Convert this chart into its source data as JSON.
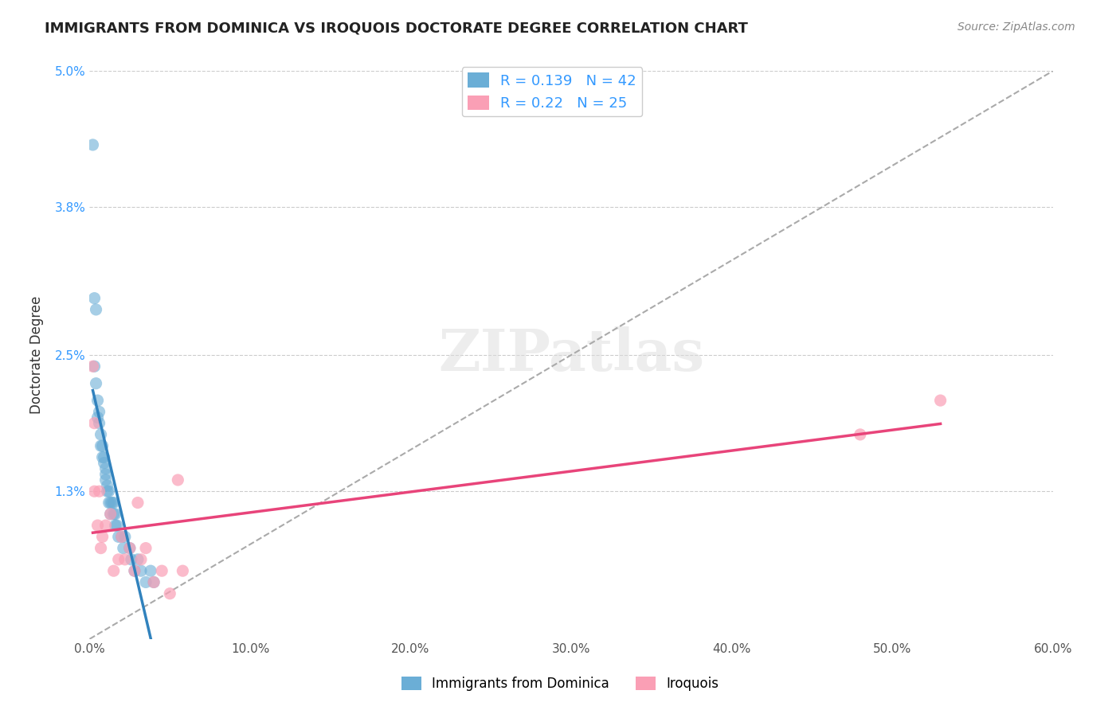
{
  "title": "IMMIGRANTS FROM DOMINICA VS IROQUOIS DOCTORATE DEGREE CORRELATION CHART",
  "source_text": "Source: ZipAtlas.com",
  "xlabel": "",
  "ylabel": "Doctorate Degree",
  "legend_label1": "Immigrants from Dominica",
  "legend_label2": "Iroquois",
  "R1": 0.139,
  "N1": 42,
  "R2": 0.22,
  "N2": 25,
  "xlim": [
    0.0,
    0.6
  ],
  "ylim": [
    0.0,
    0.05
  ],
  "yticks": [
    0.013,
    0.025,
    0.038,
    0.05
  ],
  "ytick_labels": [
    "1.3%",
    "2.5%",
    "3.8%",
    "5.0%"
  ],
  "xtick_labels": [
    "0.0%",
    "10.0%",
    "20.0%",
    "30.0%",
    "40.0%",
    "50.0%",
    "60.0%"
  ],
  "xticks": [
    0.0,
    0.1,
    0.2,
    0.3,
    0.4,
    0.5,
    0.6
  ],
  "color_blue": "#6baed6",
  "color_pink": "#fa9fb5",
  "line_blue": "#3182bd",
  "line_pink": "#e8447a",
  "watermark": "ZIPatlas",
  "blue_dots_x": [
    0.002,
    0.003,
    0.004,
    0.005,
    0.005,
    0.006,
    0.006,
    0.007,
    0.007,
    0.008,
    0.008,
    0.009,
    0.009,
    0.01,
    0.01,
    0.01,
    0.011,
    0.011,
    0.012,
    0.012,
    0.013,
    0.013,
    0.014,
    0.015,
    0.015,
    0.016,
    0.016,
    0.017,
    0.018,
    0.02,
    0.021,
    0.022,
    0.025,
    0.026,
    0.028,
    0.03,
    0.032,
    0.035,
    0.038,
    0.04,
    0.003,
    0.004
  ],
  "blue_dots_y": [
    0.0435,
    0.024,
    0.0225,
    0.0195,
    0.021,
    0.019,
    0.02,
    0.017,
    0.018,
    0.016,
    0.017,
    0.0155,
    0.016,
    0.014,
    0.015,
    0.0145,
    0.013,
    0.0135,
    0.012,
    0.013,
    0.012,
    0.011,
    0.012,
    0.011,
    0.012,
    0.01,
    0.011,
    0.01,
    0.009,
    0.009,
    0.008,
    0.009,
    0.008,
    0.007,
    0.006,
    0.007,
    0.006,
    0.005,
    0.006,
    0.005,
    0.03,
    0.029
  ],
  "pink_dots_x": [
    0.002,
    0.003,
    0.005,
    0.007,
    0.008,
    0.01,
    0.013,
    0.015,
    0.018,
    0.02,
    0.022,
    0.025,
    0.028,
    0.03,
    0.032,
    0.035,
    0.04,
    0.045,
    0.05,
    0.055,
    0.058,
    0.48,
    0.53,
    0.003,
    0.006
  ],
  "pink_dots_y": [
    0.024,
    0.013,
    0.01,
    0.008,
    0.009,
    0.01,
    0.011,
    0.006,
    0.007,
    0.009,
    0.007,
    0.008,
    0.006,
    0.012,
    0.007,
    0.008,
    0.005,
    0.006,
    0.004,
    0.014,
    0.006,
    0.018,
    0.021,
    0.019,
    0.013
  ]
}
